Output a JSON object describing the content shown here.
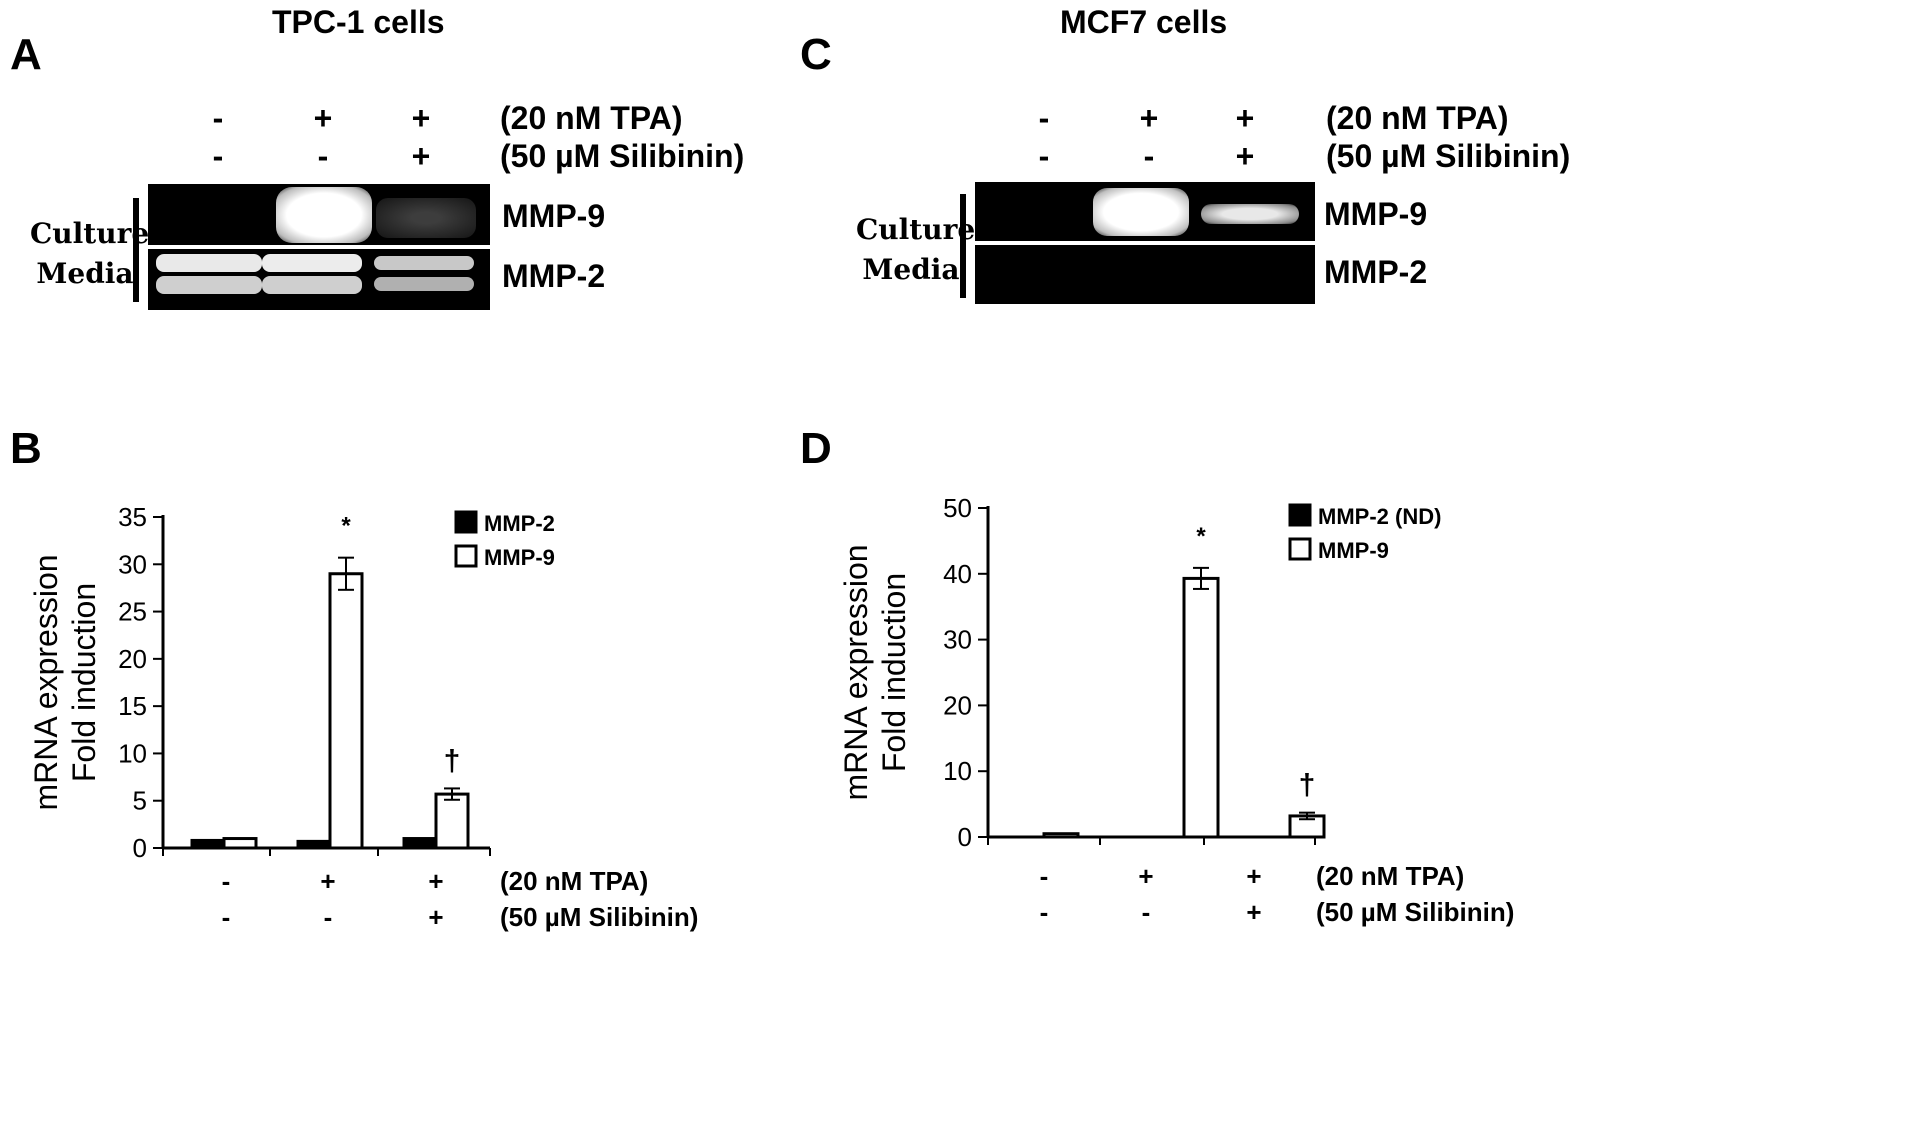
{
  "panels": {
    "A": {
      "letter": "A",
      "title": "TPC-1 cells",
      "conditions": [
        {
          "label": "(20 nM TPA)",
          "signs": [
            "-",
            "+",
            "+"
          ]
        },
        {
          "label": "(50 µM Silibinin)",
          "signs": [
            "-",
            "-",
            "+"
          ]
        }
      ],
      "side_label": [
        "Culture",
        "Media"
      ],
      "bands": [
        "MMP-9",
        "MMP-2"
      ]
    },
    "C": {
      "letter": "C",
      "title": "MCF7 cells",
      "conditions": [
        {
          "label": "(20 nM TPA)",
          "signs": [
            "-",
            "+",
            "+"
          ]
        },
        {
          "label": "(50 µM Silibinin)",
          "signs": [
            "-",
            "-",
            "+"
          ]
        }
      ],
      "side_label": [
        "Culture",
        "Media"
      ],
      "bands": [
        "MMP-9",
        "MMP-2"
      ]
    }
  },
  "chart_data": [
    {
      "panel": "B",
      "type": "bar",
      "ylabel": [
        "mRNA expression",
        "Fold induction"
      ],
      "ylim": [
        0,
        35
      ],
      "yticks": [
        0,
        5,
        10,
        15,
        20,
        25,
        30,
        35
      ],
      "conditions": [
        {
          "label": "(20 nM TPA)",
          "signs": [
            "-",
            "+",
            "+"
          ]
        },
        {
          "label": "(50 µM Silibinin)",
          "signs": [
            "-",
            "-",
            "+"
          ]
        }
      ],
      "series": [
        {
          "name": "MMP-2",
          "fill": "#000000",
          "values": [
            0.8,
            0.7,
            1.0
          ],
          "errors": [
            0,
            0,
            0
          ]
        },
        {
          "name": "MMP-9",
          "fill": "#ffffff",
          "values": [
            1.0,
            29.0,
            5.7
          ],
          "errors": [
            0,
            1.7,
            0.6
          ]
        }
      ],
      "annotations": [
        "",
        "*",
        "†"
      ],
      "legend_position": "top-right"
    },
    {
      "panel": "D",
      "type": "bar",
      "ylabel": [
        "mRNA expression",
        "Fold induction"
      ],
      "ylim": [
        0,
        50
      ],
      "yticks": [
        0,
        10,
        20,
        30,
        40,
        50
      ],
      "conditions": [
        {
          "label": "(20 nM TPA)",
          "signs": [
            "-",
            "+",
            "+"
          ]
        },
        {
          "label": "(50 µM Silibinin)",
          "signs": [
            "-",
            "-",
            "+"
          ]
        }
      ],
      "series": [
        {
          "name": "MMP-2 (ND)",
          "fill": "#000000",
          "values": [
            0,
            0,
            0
          ],
          "errors": [
            0,
            0,
            0
          ]
        },
        {
          "name": "MMP-9",
          "fill": "#ffffff",
          "values": [
            0.5,
            39.3,
            3.2
          ],
          "errors": [
            0,
            1.6,
            0.5
          ]
        }
      ],
      "annotations": [
        "",
        "*",
        "†"
      ],
      "legend_position": "top-right"
    }
  ]
}
